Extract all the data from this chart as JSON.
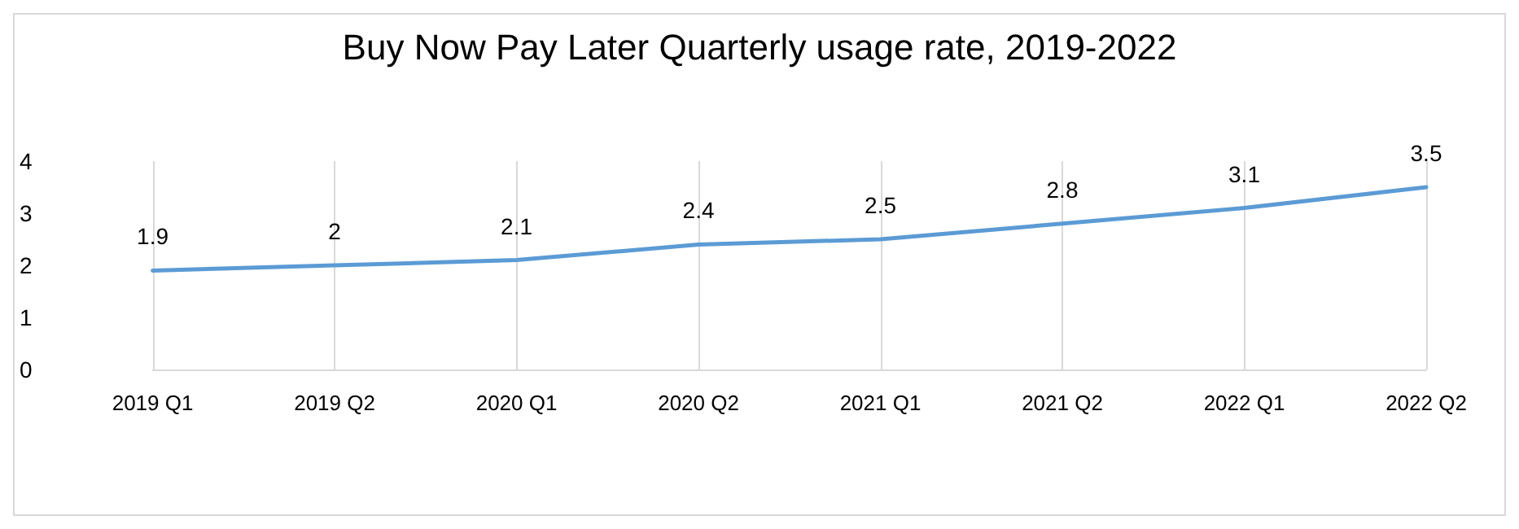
{
  "chart_data": {
    "type": "line",
    "title": "Buy Now Pay Later Quarterly usage rate, 2019-2022",
    "categories": [
      "2019 Q1",
      "2019 Q2",
      "2020 Q1",
      "2020 Q2",
      "2021 Q1",
      "2021 Q2",
      "2022 Q1",
      "2022 Q2"
    ],
    "series": [
      {
        "color": "#5b9bd5",
        "values": [
          1.9,
          2,
          2.1,
          2.4,
          2.5,
          2.8,
          3.1,
          3.5
        ]
      }
    ],
    "ylim": [
      0,
      4
    ],
    "yticks": [
      0,
      1,
      2,
      3,
      4
    ],
    "grid": "x",
    "data_labels": true,
    "marker": "none",
    "line_style": "solid"
  }
}
